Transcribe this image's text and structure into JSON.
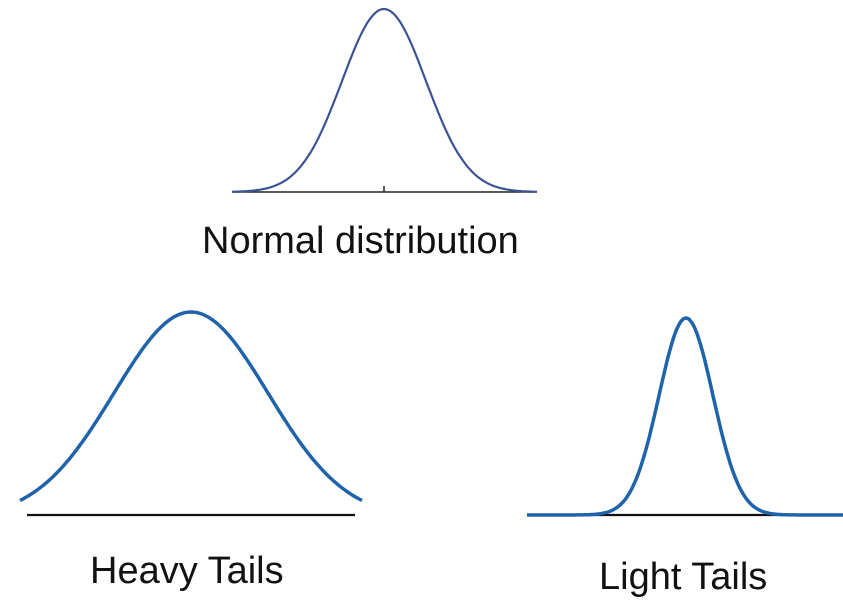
{
  "panels": {
    "normal": {
      "label": "Normal distribution",
      "curve_color": "#3c5494",
      "axis_color": "#222222"
    },
    "heavy": {
      "label": "Heavy Tails",
      "curve_color": "#1f63aa",
      "axis_color": "#111111"
    },
    "light": {
      "label": "Light Tails",
      "curve_color": "#1f63aa",
      "axis_color": "#111111"
    }
  }
}
